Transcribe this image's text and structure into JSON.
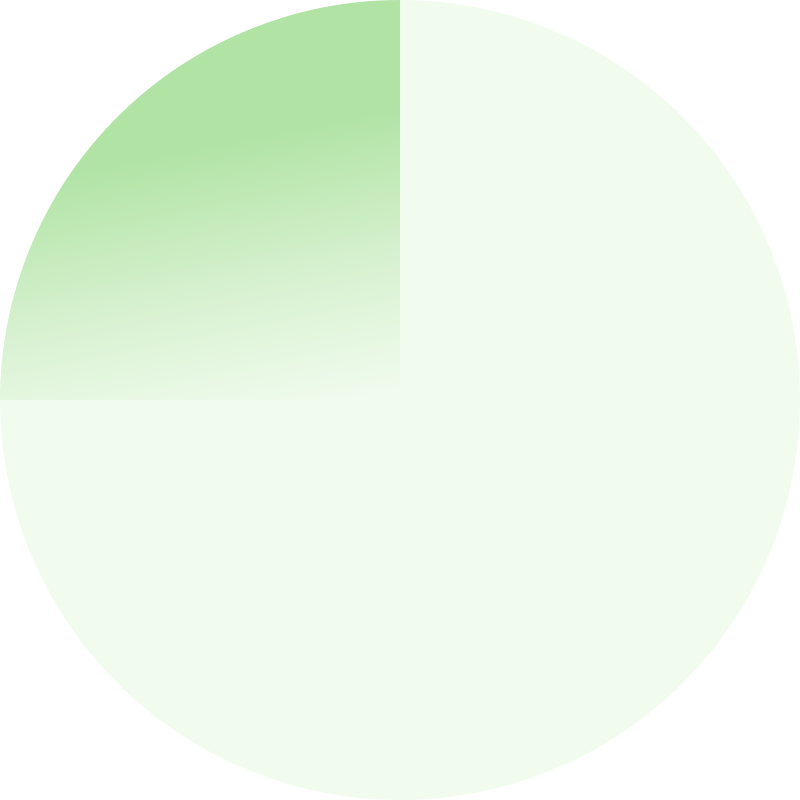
{
  "progress_indicator": {
    "progress_fraction": 0.75,
    "start_angle": "12 o'clock",
    "direction": "clockwise",
    "colors": {
      "filled": "#f1fcef",
      "remaining_solid": "#b1e3a5",
      "remaining_fade": "#f1fcef"
    }
  }
}
